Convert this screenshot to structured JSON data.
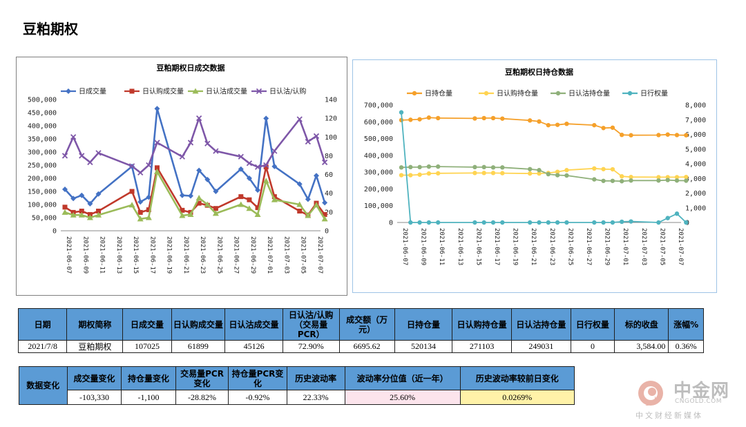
{
  "page_title": "豆粕期权",
  "colors": {
    "blue": "#4472c4",
    "red": "#c0392b",
    "green": "#9bbb59",
    "purple": "#7e57a8",
    "orange": "#f5a02a",
    "yellow": "#ffd452",
    "gray_green": "#8fb07a",
    "teal": "#4fb3bf",
    "header_blue": "#5b9bd5"
  },
  "chart_data": [
    {
      "type": "line",
      "title": "豆粕期权日成交数据",
      "x": [
        "2021-06-07",
        "2021-06-08",
        "2021-06-09",
        "2021-06-10",
        "2021-06-11",
        "2021-06-15",
        "2021-06-16",
        "2021-06-17",
        "2021-06-18",
        "2021-06-21",
        "2021-06-22",
        "2021-06-23",
        "2021-06-24",
        "2021-06-25",
        "2021-06-28",
        "2021-06-29",
        "2021-06-30",
        "2021-07-01",
        "2021-07-02",
        "2021-07-05",
        "2021-07-06",
        "2021-07-07",
        "2021-07-08"
      ],
      "x_tick_labels": [
        "2021-06-07",
        "2021-06-09",
        "2021-06-11",
        "2021-06-13",
        "2021-06-15",
        "2021-06-17",
        "2021-06-19",
        "2021-06-21",
        "2021-06-23",
        "2021-06-25",
        "2021-06-27",
        "2021-06-29",
        "2021-07-01",
        "2021-07-03",
        "2021-07-05",
        "2021-07-07"
      ],
      "y_left_ticks": [
        "0",
        "50,000",
        "100,000",
        "150,000",
        "200,000",
        "250,000",
        "300,000",
        "350,000",
        "400,000",
        "450,000",
        "500,000"
      ],
      "y_right_ticks": [
        "0",
        "20",
        "40",
        "60",
        "80",
        "100",
        "120",
        "140"
      ],
      "ylim_left": [
        0,
        500000
      ],
      "ylim_right": [
        0,
        140
      ],
      "legend_position": "top",
      "series": [
        {
          "name": "日成交量",
          "axis": "left",
          "color": "#4472c4",
          "marker": "diamond",
          "values": [
            158000,
            123000,
            135000,
            103000,
            140000,
            245000,
            110000,
            128000,
            465000,
            135000,
            133000,
            230000,
            195000,
            150000,
            235000,
            200000,
            155000,
            428000,
            245000,
            178000,
            120000,
            210000,
            107025
          ]
        },
        {
          "name": "日认购成交量",
          "axis": "left",
          "color": "#c0392b",
          "marker": "square",
          "values": [
            90000,
            70000,
            75000,
            62000,
            75000,
            150000,
            70000,
            80000,
            240000,
            78000,
            70000,
            105000,
            97000,
            85000,
            130000,
            118000,
            88000,
            243000,
            130000,
            75000,
            60000,
            105000,
            61899
          ]
        },
        {
          "name": "日认沽成交量",
          "axis": "left",
          "color": "#9bbb59",
          "marker": "triangle",
          "values": [
            70000,
            60000,
            60000,
            50000,
            60000,
            98000,
            45000,
            50000,
            225000,
            58000,
            62000,
            125000,
            100000,
            66000,
            100000,
            85000,
            62000,
            190000,
            118000,
            100000,
            58000,
            98000,
            45126
          ]
        },
        {
          "name": "日认沽/认购",
          "axis": "right",
          "color": "#7e57a8",
          "marker": "x",
          "values": [
            80,
            100,
            80,
            73,
            83,
            69,
            62,
            70,
            94,
            79,
            94,
            120,
            93,
            85,
            79,
            72,
            68,
            70,
            85,
            119,
            95,
            101,
            73
          ]
        }
      ]
    },
    {
      "type": "line",
      "title": "豆粕期权日持仓数据",
      "x": [
        "2021-06-07",
        "2021-06-08",
        "2021-06-09",
        "2021-06-10",
        "2021-06-11",
        "2021-06-15",
        "2021-06-16",
        "2021-06-17",
        "2021-06-18",
        "2021-06-21",
        "2021-06-22",
        "2021-06-23",
        "2021-06-24",
        "2021-06-25",
        "2021-06-28",
        "2021-06-29",
        "2021-06-30",
        "2021-07-01",
        "2021-07-02",
        "2021-07-05",
        "2021-07-06",
        "2021-07-07",
        "2021-07-08"
      ],
      "x_tick_labels": [
        "2021-06-07",
        "2021-06-09",
        "2021-06-11",
        "2021-06-13",
        "2021-06-15",
        "2021-06-17",
        "2021-06-19",
        "2021-06-21",
        "2021-06-23",
        "2021-06-25",
        "2021-06-27",
        "2021-06-29",
        "2021-07-01",
        "2021-07-03",
        "2021-07-05",
        "2021-07-07"
      ],
      "y_left_ticks": [
        "0",
        "100,000",
        "200,000",
        "300,000",
        "400,000",
        "500,000",
        "600,000",
        "700,000"
      ],
      "y_right_ticks": [
        "0",
        "1,000",
        "2,000",
        "3,000",
        "4,000",
        "5,000",
        "6,000",
        "7,000",
        "8,000"
      ],
      "ylim_left": [
        0,
        700000
      ],
      "ylim_right": [
        0,
        8000
      ],
      "legend_position": "top",
      "series": [
        {
          "name": "日持仓量",
          "axis": "left",
          "color": "#f5a02a",
          "marker": "circle",
          "values": [
            610000,
            612000,
            615000,
            625000,
            622000,
            620000,
            622000,
            622000,
            619000,
            608000,
            602000,
            580000,
            582000,
            588000,
            580000,
            563000,
            565000,
            522000,
            520000,
            521000,
            524000,
            521000,
            520134
          ]
        },
        {
          "name": "日认购持仓量",
          "axis": "left",
          "color": "#ffd452",
          "marker": "circle",
          "values": [
            282000,
            282000,
            285000,
            292000,
            293000,
            295000,
            295000,
            295000,
            294000,
            292000,
            292000,
            295000,
            302000,
            312000,
            322000,
            318000,
            317000,
            275000,
            271000,
            270000,
            270000,
            270000,
            271103
          ]
        },
        {
          "name": "日认沽持仓量",
          "axis": "left",
          "color": "#8fb07a",
          "marker": "circle",
          "values": [
            328000,
            330000,
            330000,
            333000,
            333000,
            330000,
            330000,
            328000,
            328000,
            318000,
            312000,
            288000,
            282000,
            280000,
            257000,
            248000,
            248000,
            246000,
            250000,
            250000,
            253000,
            250000,
            249031
          ]
        },
        {
          "name": "日行权量",
          "axis": "right",
          "color": "#4fb3bf",
          "marker": "circle",
          "values": [
            7500,
            0,
            0,
            0,
            0,
            0,
            0,
            0,
            0,
            0,
            0,
            0,
            0,
            0,
            0,
            0,
            0,
            50,
            70,
            0,
            300,
            600,
            0
          ]
        }
      ]
    }
  ],
  "table1": {
    "headers": [
      "日期",
      "期权简称",
      "日成交量",
      "日认购成交量",
      "日认沽成交量",
      "日认沽/认购（交易量PCR）",
      "成交额（万元）",
      "日持仓量",
      "日认购持仓量",
      "日认沽持仓量",
      "日行权量",
      "标的收盘",
      "涨幅%"
    ],
    "rows": [
      [
        "2021/7/8",
        "豆粕期权",
        "107025",
        "61899",
        "45126",
        "72.90%",
        "6695.62",
        "520134",
        "271103",
        "249031",
        "0",
        "3,584.00",
        "0.36%"
      ]
    ]
  },
  "table2": {
    "row_label": "数据变化",
    "headers": [
      "成交量变化",
      "持仓量变化",
      "交易量PCR变化",
      "持仓量PCR变化",
      "历史波动率",
      "波动率分位值（近一年）",
      "历史波动率较前日变化"
    ],
    "values": [
      "-103,330",
      "-1,100",
      "-28.82%",
      "-0.92%",
      "22.33%",
      "25.60%",
      "0.0269%"
    ]
  },
  "logo": {
    "name": "中金网",
    "domain": "CNGOLD.COM",
    "slogan": "中文财经新媒体"
  }
}
